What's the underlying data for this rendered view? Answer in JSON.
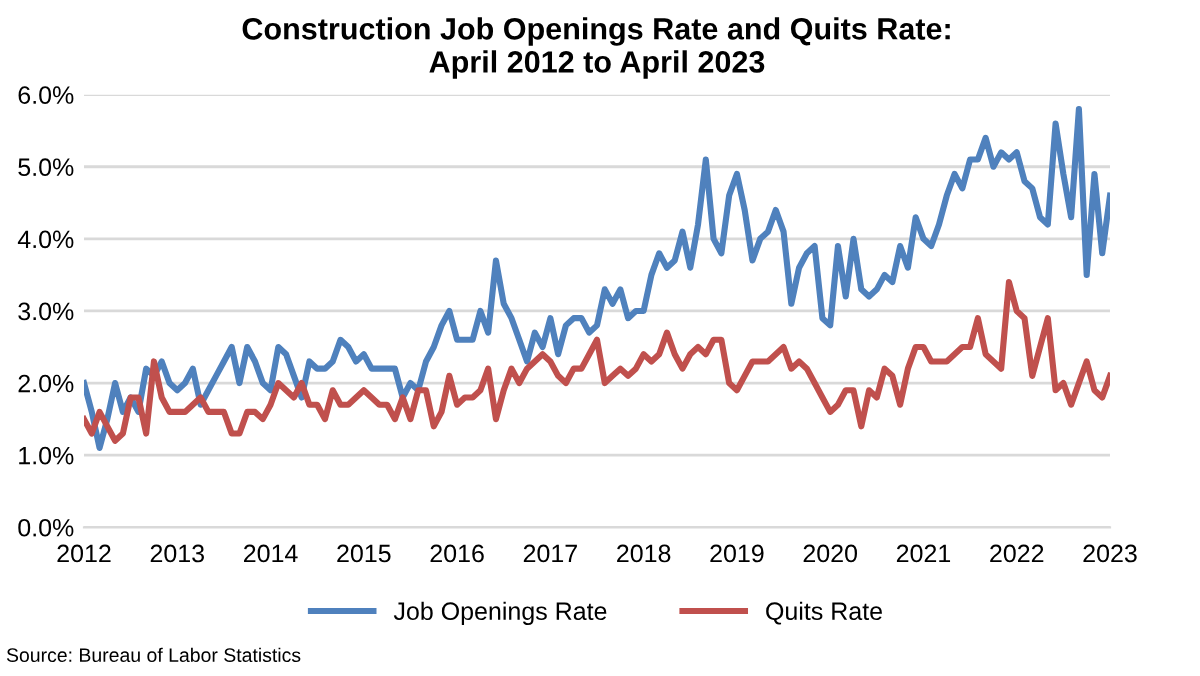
{
  "chart_data": {
    "type": "line",
    "title": "Construction Job Openings Rate and Quits Rate:\nApril 2012 to April 2023",
    "categories": [
      "2012",
      null,
      null,
      null,
      null,
      null,
      null,
      null,
      null,
      null,
      null,
      null,
      "2013",
      null,
      null,
      null,
      null,
      null,
      null,
      null,
      null,
      null,
      null,
      null,
      "2014",
      null,
      null,
      null,
      null,
      null,
      null,
      null,
      null,
      null,
      null,
      null,
      "2015",
      null,
      null,
      null,
      null,
      null,
      null,
      null,
      null,
      null,
      null,
      null,
      "2016",
      null,
      null,
      null,
      null,
      null,
      null,
      null,
      null,
      null,
      null,
      null,
      "2017",
      null,
      null,
      null,
      null,
      null,
      null,
      null,
      null,
      null,
      null,
      null,
      "2018",
      null,
      null,
      null,
      null,
      null,
      null,
      null,
      null,
      null,
      null,
      null,
      "2019",
      null,
      null,
      null,
      null,
      null,
      null,
      null,
      null,
      null,
      null,
      null,
      "2020",
      null,
      null,
      null,
      null,
      null,
      null,
      null,
      null,
      null,
      null,
      null,
      "2021",
      null,
      null,
      null,
      null,
      null,
      null,
      null,
      null,
      null,
      null,
      null,
      "2022",
      null,
      null,
      null,
      null,
      null,
      null,
      null,
      null,
      null,
      null,
      null,
      "2023"
    ],
    "series": [
      {
        "name": "Job Openings Rate",
        "color": "#4f81bd",
        "values": [
          2.0,
          1.6,
          1.1,
          1.5,
          2.0,
          1.6,
          1.8,
          1.6,
          2.2,
          2.1,
          2.3,
          2.0,
          1.9,
          2.0,
          2.2,
          1.7,
          1.9,
          2.1,
          2.3,
          2.5,
          2.0,
          2.5,
          2.3,
          2.0,
          1.9,
          2.5,
          2.4,
          2.1,
          1.8,
          2.3,
          2.2,
          2.2,
          2.3,
          2.6,
          2.5,
          2.3,
          2.4,
          2.2,
          2.2,
          2.2,
          2.2,
          1.8,
          2.0,
          1.9,
          2.3,
          2.5,
          2.8,
          3.0,
          2.6,
          2.6,
          2.6,
          3.0,
          2.7,
          3.7,
          3.1,
          2.9,
          2.6,
          2.3,
          2.7,
          2.5,
          2.9,
          2.4,
          2.8,
          2.9,
          2.9,
          2.7,
          2.8,
          3.3,
          3.1,
          3.3,
          2.9,
          3.0,
          3.0,
          3.5,
          3.8,
          3.6,
          3.7,
          4.1,
          3.6,
          4.2,
          5.1,
          4.0,
          3.8,
          4.6,
          4.9,
          4.4,
          3.7,
          4.0,
          4.1,
          4.4,
          4.1,
          3.1,
          3.6,
          3.8,
          3.9,
          2.9,
          2.8,
          3.9,
          3.2,
          4.0,
          3.3,
          3.2,
          3.3,
          3.5,
          3.4,
          3.9,
          3.6,
          4.3,
          4.0,
          3.9,
          4.2,
          4.6,
          4.9,
          4.7,
          5.1,
          5.1,
          5.4,
          5.0,
          5.2,
          5.1,
          5.2,
          4.8,
          4.7,
          4.3,
          4.2,
          5.6,
          4.9,
          4.3,
          5.8,
          3.5,
          4.9,
          3.8,
          4.6
        ]
      },
      {
        "name": "Quits Rate",
        "color": "#c0504d",
        "values": [
          1.5,
          1.3,
          1.6,
          1.4,
          1.2,
          1.3,
          1.8,
          1.8,
          1.3,
          2.3,
          1.8,
          1.6,
          1.6,
          1.6,
          1.7,
          1.8,
          1.6,
          1.6,
          1.6,
          1.3,
          1.3,
          1.6,
          1.6,
          1.5,
          1.7,
          2.0,
          1.9,
          1.8,
          2.0,
          1.7,
          1.7,
          1.5,
          1.9,
          1.7,
          1.7,
          1.8,
          1.9,
          1.8,
          1.7,
          1.7,
          1.5,
          1.8,
          1.5,
          1.9,
          1.9,
          1.4,
          1.6,
          2.1,
          1.7,
          1.8,
          1.8,
          1.9,
          2.2,
          1.5,
          1.9,
          2.2,
          2.0,
          2.2,
          2.3,
          2.4,
          2.3,
          2.1,
          2.0,
          2.2,
          2.2,
          2.4,
          2.6,
          2.0,
          2.1,
          2.2,
          2.1,
          2.2,
          2.4,
          2.3,
          2.4,
          2.7,
          2.4,
          2.2,
          2.4,
          2.5,
          2.4,
          2.6,
          2.6,
          2.0,
          1.9,
          2.1,
          2.3,
          2.3,
          2.3,
          2.4,
          2.5,
          2.2,
          2.3,
          2.2,
          2.0,
          1.8,
          1.6,
          1.7,
          1.9,
          1.9,
          1.4,
          1.9,
          1.8,
          2.2,
          2.1,
          1.7,
          2.2,
          2.5,
          2.5,
          2.3,
          2.3,
          2.3,
          2.4,
          2.5,
          2.5,
          2.9,
          2.4,
          2.3,
          2.2,
          3.4,
          3.0,
          2.9,
          2.1,
          2.5,
          2.9,
          1.9,
          2.0,
          1.7,
          2.0,
          2.3,
          1.9,
          1.8,
          2.1
        ]
      }
    ],
    "ylim": [
      0,
      6
    ],
    "yticks": [
      {
        "value": 0,
        "label": "0.0%"
      },
      {
        "value": 1,
        "label": "1.0%"
      },
      {
        "value": 2,
        "label": "2.0%"
      },
      {
        "value": 3,
        "label": "3.0%"
      },
      {
        "value": 4,
        "label": "4.0%"
      },
      {
        "value": 5,
        "label": "5.0%"
      },
      {
        "value": 6,
        "label": "6.0%"
      }
    ],
    "grid": "y",
    "legend": "bottom",
    "marker": "none",
    "line_style": "solid",
    "annotations": [
      "Source: Bureau of Labor Statistics"
    ]
  }
}
